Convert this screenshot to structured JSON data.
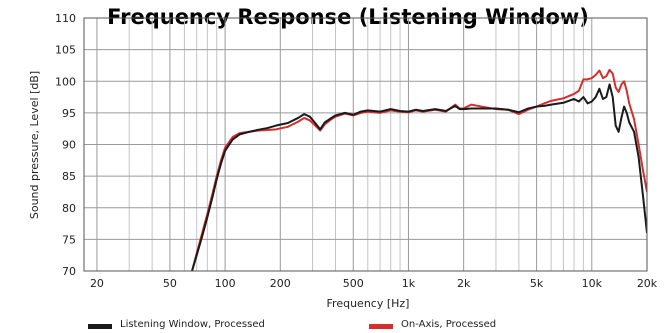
{
  "chart_data": {
    "type": "line",
    "title": "Frequency Response (Listening Window)",
    "xlabel": "Frequency  [Hz]",
    "ylabel": "Sound pressure, Level  [dB]",
    "x_scale": "log",
    "xlim": [
      17,
      20000
    ],
    "ylim": [
      70,
      110
    ],
    "grid": true,
    "x_ticks": [
      {
        "value": 20,
        "label": "20"
      },
      {
        "value": 50,
        "label": "50"
      },
      {
        "value": 100,
        "label": "100"
      },
      {
        "value": 200,
        "label": "200"
      },
      {
        "value": 500,
        "label": "500"
      },
      {
        "value": 1000,
        "label": "1k"
      },
      {
        "value": 2000,
        "label": "2k"
      },
      {
        "value": 5000,
        "label": "5k"
      },
      {
        "value": 10000,
        "label": "10k"
      },
      {
        "value": 20000,
        "label": "20k"
      }
    ],
    "y_ticks": [
      70,
      75,
      80,
      85,
      90,
      95,
      100,
      105,
      110
    ],
    "legend_position": "bottom",
    "series": [
      {
        "name": "Listening Window, Processed",
        "color": "#1a1a1a",
        "x": [
          66,
          70,
          75,
          80,
          85,
          90,
          95,
          100,
          110,
          120,
          135,
          150,
          170,
          190,
          220,
          250,
          270,
          290,
          310,
          330,
          350,
          380,
          400,
          450,
          500,
          550,
          600,
          700,
          800,
          900,
          1000,
          1100,
          1200,
          1400,
          1600,
          1800,
          1900,
          2000,
          2200,
          2500,
          3000,
          3500,
          4000,
          4500,
          5000,
          5500,
          6000,
          7000,
          8000,
          8500,
          9000,
          9500,
          10000,
          10500,
          11000,
          11500,
          12000,
          12500,
          13000,
          13500,
          14000,
          14500,
          15000,
          15500,
          16000,
          17000,
          18000,
          19000,
          20000
        ],
        "y": [
          70.0,
          72.5,
          75.5,
          78.5,
          81.5,
          84.5,
          87.0,
          89.0,
          90.8,
          91.6,
          92.0,
          92.3,
          92.6,
          93.0,
          93.4,
          94.2,
          94.8,
          94.4,
          93.4,
          92.4,
          93.5,
          94.2,
          94.6,
          95.0,
          94.7,
          95.2,
          95.4,
          95.2,
          95.6,
          95.3,
          95.2,
          95.5,
          95.3,
          95.6,
          95.3,
          96.1,
          95.6,
          95.6,
          95.7,
          95.7,
          95.7,
          95.5,
          95.1,
          95.7,
          96.0,
          96.1,
          96.3,
          96.6,
          97.2,
          96.8,
          97.5,
          96.5,
          96.8,
          97.5,
          98.8,
          97.2,
          97.5,
          99.5,
          97.5,
          93.0,
          92.0,
          94.2,
          96.0,
          95.0,
          93.5,
          92.0,
          88.0,
          82.0,
          76.0
        ]
      },
      {
        "name": "On-Axis, Processed",
        "color": "#d32f2f",
        "x": [
          66,
          70,
          75,
          80,
          85,
          90,
          95,
          100,
          110,
          120,
          135,
          150,
          170,
          190,
          220,
          250,
          270,
          290,
          310,
          330,
          350,
          380,
          400,
          450,
          500,
          550,
          600,
          700,
          800,
          900,
          1000,
          1100,
          1200,
          1400,
          1600,
          1800,
          1900,
          2000,
          2200,
          2500,
          3000,
          3500,
          4000,
          4500,
          5000,
          5500,
          6000,
          7000,
          8000,
          8500,
          9000,
          9500,
          10000,
          10500,
          11000,
          11500,
          12000,
          12500,
          13000,
          13500,
          14000,
          14500,
          15000,
          15500,
          16000,
          17000,
          18000,
          19000,
          20000
        ],
        "y": [
          70.0,
          72.8,
          76.0,
          79.0,
          82.0,
          85.0,
          87.5,
          89.5,
          91.2,
          91.8,
          92.0,
          92.2,
          92.3,
          92.4,
          92.8,
          93.6,
          94.2,
          93.8,
          93.0,
          92.2,
          93.2,
          94.0,
          94.4,
          94.9,
          94.6,
          95.0,
          95.2,
          95.0,
          95.4,
          95.2,
          95.1,
          95.4,
          95.2,
          95.5,
          95.2,
          96.3,
          95.7,
          95.7,
          96.3,
          96.0,
          95.6,
          95.5,
          94.8,
          95.5,
          96.0,
          96.5,
          96.9,
          97.3,
          98.0,
          98.5,
          100.3,
          100.3,
          100.5,
          101.0,
          101.7,
          100.5,
          100.8,
          101.8,
          101.2,
          99.0,
          98.3,
          99.5,
          100.0,
          98.5,
          96.5,
          94.0,
          90.0,
          86.0,
          82.5
        ]
      }
    ]
  }
}
